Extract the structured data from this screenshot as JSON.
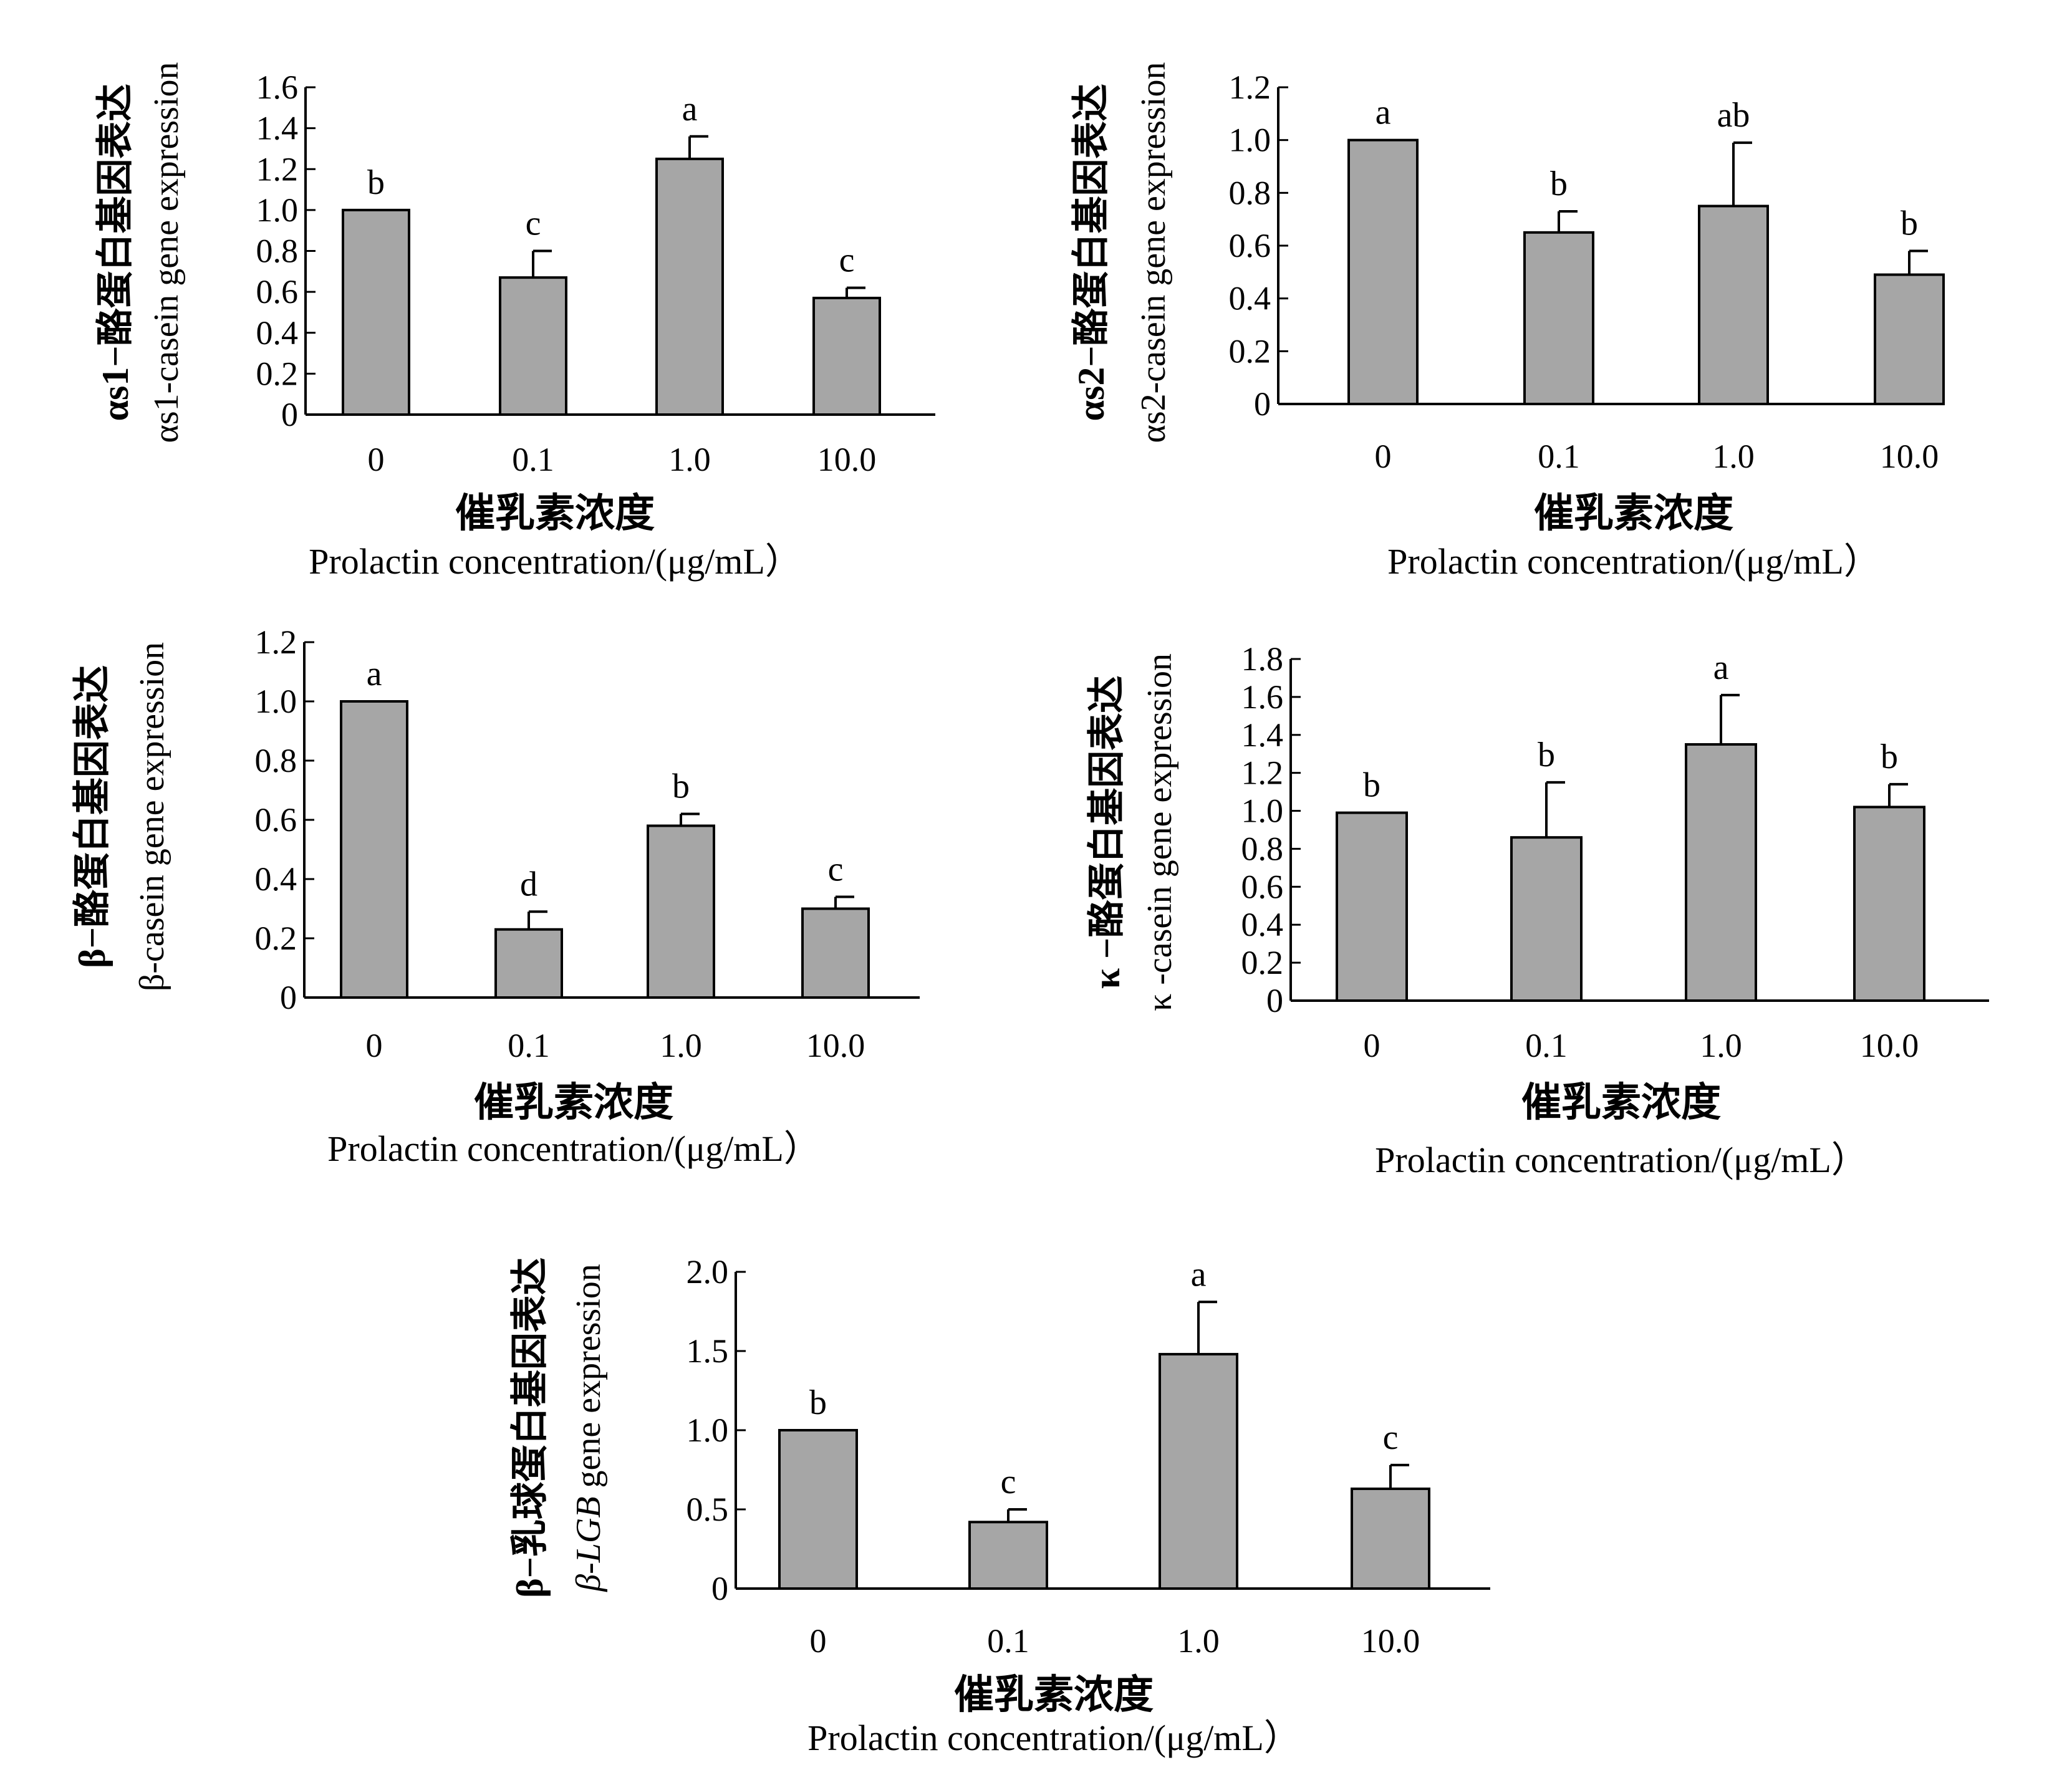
{
  "chart_data": [
    {
      "type": "bar",
      "categories": [
        "0",
        "0.1",
        "1.0",
        "10.0"
      ],
      "values": [
        1.0,
        0.67,
        1.25,
        0.57
      ],
      "errors": [
        0,
        0.13,
        0.11,
        0.05
      ],
      "letters": [
        "b",
        "c",
        "a",
        "c"
      ],
      "yticks": [
        "0",
        "0.2",
        "0.4",
        "0.6",
        "0.8",
        "1.0",
        "1.2",
        "1.4",
        "1.6"
      ],
      "ylim": [
        0,
        1.6
      ],
      "ylabel_cn": "αs1−酪蛋白基因表达",
      "ylabel_en": "αs1-casein gene expression",
      "xlabel_cn": "催乳素浓度",
      "xlabel_en": "Prolactin concentration/(μg/mL）",
      "bar_color": "#a6a6a6"
    },
    {
      "type": "bar",
      "categories": [
        "0",
        "0.1",
        "1.0",
        "10.0"
      ],
      "values": [
        1.0,
        0.65,
        0.75,
        0.49
      ],
      "errors": [
        0,
        0.08,
        0.24,
        0.09
      ],
      "letters": [
        "a",
        "b",
        "ab",
        "b"
      ],
      "yticks": [
        "0",
        "0.2",
        "0.4",
        "0.6",
        "0.8",
        "1.0",
        "1.2"
      ],
      "ylim": [
        0,
        1.2
      ],
      "ylabel_cn": "αs2−酪蛋白基因表达",
      "ylabel_en": "αs2-casein gene expression",
      "xlabel_cn": "催乳素浓度",
      "xlabel_en": "Prolactin concentration/(μg/mL）",
      "bar_color": "#a6a6a6"
    },
    {
      "type": "bar",
      "categories": [
        "0",
        "0.1",
        "1.0",
        "10.0"
      ],
      "values": [
        1.0,
        0.23,
        0.58,
        0.3
      ],
      "errors": [
        0,
        0.06,
        0.04,
        0.04
      ],
      "letters": [
        "a",
        "d",
        "b",
        "c"
      ],
      "yticks": [
        "0",
        "0.2",
        "0.4",
        "0.6",
        "0.8",
        "1.0",
        "1.2"
      ],
      "ylim": [
        0,
        1.2
      ],
      "ylabel_cn": "β−酪蛋白基因表达",
      "ylabel_en": "β-casein gene expression",
      "xlabel_cn": "催乳素浓度",
      "xlabel_en": "Prolactin concentration/(μg/mL）",
      "bar_color": "#a6a6a6"
    },
    {
      "type": "bar",
      "categories": [
        "0",
        "0.1",
        "1.0",
        "10.0"
      ],
      "values": [
        0.99,
        0.86,
        1.35,
        1.02
      ],
      "errors": [
        0,
        0.29,
        0.26,
        0.12
      ],
      "letters": [
        "b",
        "b",
        "a",
        "b"
      ],
      "yticks": [
        "0",
        "0.2",
        "0.4",
        "0.6",
        "0.8",
        "1.0",
        "1.2",
        "1.4",
        "1.6",
        "1.8"
      ],
      "ylim": [
        0,
        1.8
      ],
      "ylabel_cn": "κ −酪蛋白基因表达",
      "ylabel_en": "κ -casein gene expression",
      "xlabel_cn": "催乳素浓度",
      "xlabel_en": "Prolactin concentration/(μg/mL）",
      "bar_color": "#a6a6a6"
    },
    {
      "type": "bar",
      "categories": [
        "0",
        "0.1",
        "1.0",
        "10.0"
      ],
      "values": [
        1.0,
        0.42,
        1.48,
        0.63
      ],
      "errors": [
        0,
        0.08,
        0.33,
        0.15
      ],
      "letters": [
        "b",
        "c",
        "a",
        "c"
      ],
      "yticks": [
        "0",
        "0.5",
        "1.0",
        "1.5",
        "2.0"
      ],
      "ylim": [
        0,
        2.0
      ],
      "ylabel_cn": "β−乳球蛋白基因表达",
      "ylabel_en_italic": "β-LGB",
      "ylabel_en_rest": " gene expression",
      "xlabel_cn": "催乳素浓度",
      "xlabel_en": "Prolactin concentration/(μg/mL）",
      "bar_color": "#a6a6a6"
    }
  ]
}
